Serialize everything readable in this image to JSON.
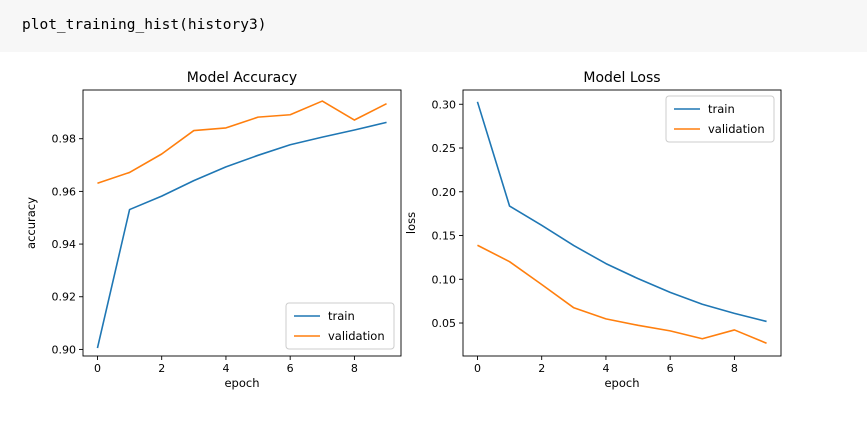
{
  "code_cell": {
    "source": "plot_training_hist(history3)"
  },
  "colors": {
    "train": "#1f77b4",
    "validation": "#ff7f0e"
  },
  "chart_data": [
    {
      "type": "line",
      "title": "Model Accuracy",
      "xlabel": "epoch",
      "ylabel": "accuracy",
      "xlim": [
        -0.45,
        9.45
      ],
      "ylim": [
        0.8975,
        0.9985
      ],
      "xticks": [
        0,
        2,
        4,
        6,
        8
      ],
      "xtick_labels": [
        "0",
        "2",
        "4",
        "6",
        "8"
      ],
      "yticks": [
        0.9,
        0.92,
        0.94,
        0.96,
        0.98
      ],
      "ytick_labels": [
        "0.90",
        "0.92",
        "0.94",
        "0.96",
        "0.98"
      ],
      "grid": false,
      "legend_position": "lower-right",
      "x": [
        0,
        1,
        2,
        3,
        4,
        5,
        6,
        7,
        8,
        9
      ],
      "series": [
        {
          "name": "train",
          "values": [
            0.9005,
            0.9531,
            0.9582,
            0.9641,
            0.9693,
            0.9737,
            0.9777,
            0.9806,
            0.9833,
            0.9862
          ]
        },
        {
          "name": "validation",
          "values": [
            0.9631,
            0.9672,
            0.9742,
            0.9831,
            0.9841,
            0.9882,
            0.9891,
            0.9943,
            0.9871,
            0.9933
          ]
        }
      ]
    },
    {
      "type": "line",
      "title": "Model Loss",
      "xlabel": "epoch",
      "ylabel": "loss",
      "xlim": [
        -0.45,
        9.45
      ],
      "ylim": [
        0.0123,
        0.3163
      ],
      "xticks": [
        0,
        2,
        4,
        6,
        8
      ],
      "xtick_labels": [
        "0",
        "2",
        "4",
        "6",
        "8"
      ],
      "yticks": [
        0.05,
        0.1,
        0.15,
        0.2,
        0.25,
        0.3
      ],
      "ytick_labels": [
        "0.05",
        "0.10",
        "0.15",
        "0.20",
        "0.25",
        "0.30"
      ],
      "grid": false,
      "legend_position": "top-right",
      "x": [
        0,
        1,
        2,
        3,
        4,
        5,
        6,
        7,
        8,
        9
      ],
      "series": [
        {
          "name": "train",
          "values": [
            0.3028,
            0.1836,
            0.1616,
            0.1385,
            0.1179,
            0.1007,
            0.085,
            0.0714,
            0.061,
            0.0518
          ]
        },
        {
          "name": "validation",
          "values": [
            0.1389,
            0.1201,
            0.094,
            0.0674,
            0.0547,
            0.0474,
            0.041,
            0.032,
            0.0421,
            0.0269
          ]
        }
      ]
    }
  ]
}
